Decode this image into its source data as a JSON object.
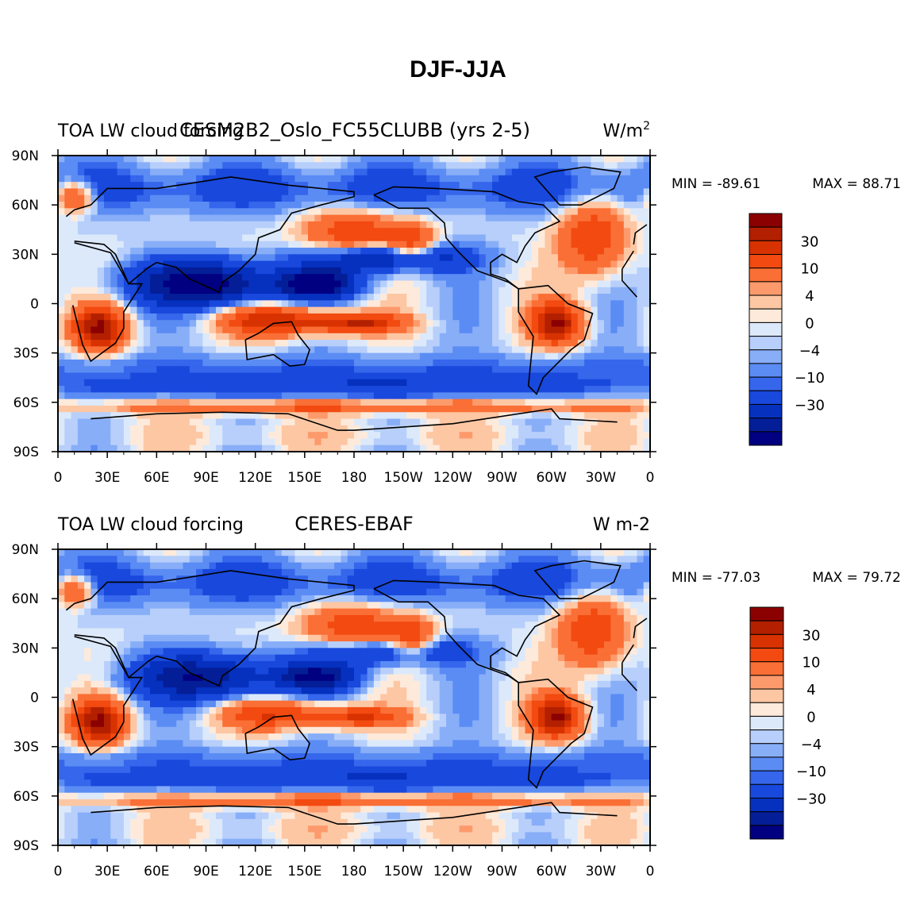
{
  "figure_title": "DJF-JJA",
  "chart_data": [
    {
      "type": "heatmap",
      "subtype": "filled-contour-map",
      "left_title": "TOA LW cloud forcing",
      "center_title": "CESM2B2_Oslo_FC55CLUBB (yrs 2-5)",
      "units_base": "W/m",
      "units_sup": "2",
      "min_label": "MIN = -89.61",
      "max_label": "MAX =  88.71",
      "min": -89.61,
      "max": 88.71,
      "x_ticks": [
        "0",
        "30E",
        "60E",
        "90E",
        "120E",
        "150E",
        "180",
        "150W",
        "120W",
        "90W",
        "60W",
        "30W",
        "0"
      ],
      "y_ticks": [
        "90N",
        "60N",
        "30N",
        "0",
        "30S",
        "60S",
        "90S"
      ],
      "colorbar_levels": [
        -50,
        -40,
        -30,
        -20,
        -10,
        -8,
        -4,
        -2,
        0,
        2,
        4,
        8,
        10,
        20,
        30,
        40,
        50
      ],
      "colorbar_labels": [
        "30",
        "10",
        "4",
        "0",
        "−4",
        "−10",
        "−30"
      ],
      "colorbar_colors": [
        "#8b0000",
        "#b22000",
        "#d83200",
        "#f24a10",
        "#fa6f35",
        "#fd9a6c",
        "#fdc7a4",
        "#feeadb",
        "#dce9fb",
        "#b7cffa",
        "#88aef8",
        "#5b8cf4",
        "#3566eb",
        "#1848dc",
        "#0630be",
        "#041e98",
        "#000080"
      ],
      "regions": [
        {
          "name": "tropical-indian-ocean-negative",
          "value": -50
        },
        {
          "name": "central-pacific-north-negative",
          "value": -40
        },
        {
          "name": "southern-africa-positive",
          "value": 50
        },
        {
          "name": "amazon-positive",
          "value": 50
        },
        {
          "name": "maritime-continent-positive",
          "value": 40
        },
        {
          "name": "north-pacific-positive",
          "value": 30
        },
        {
          "name": "north-atlantic-positive",
          "value": 30
        },
        {
          "name": "southern-ocean-60s-positive",
          "value": 20
        },
        {
          "name": "southern-ocean-negative",
          "value": -20
        },
        {
          "name": "antarctica-weak-positive",
          "value": 4
        }
      ]
    },
    {
      "type": "heatmap",
      "subtype": "filled-contour-map",
      "left_title": "TOA LW cloud forcing",
      "center_title": "CERES-EBAF",
      "units_base": "W m-2",
      "units_sup": "",
      "min_label": "MIN = -77.03",
      "max_label": "MAX =  79.72",
      "min": -77.03,
      "max": 79.72,
      "x_ticks": [
        "0",
        "30E",
        "60E",
        "90E",
        "120E",
        "150E",
        "180",
        "150W",
        "120W",
        "90W",
        "60W",
        "30W",
        "0"
      ],
      "y_ticks": [
        "90N",
        "60N",
        "30N",
        "0",
        "30S",
        "60S",
        "90S"
      ],
      "colorbar_levels": [
        -50,
        -40,
        -30,
        -20,
        -10,
        -8,
        -4,
        -2,
        0,
        2,
        4,
        8,
        10,
        20,
        30,
        40,
        50
      ],
      "colorbar_labels": [
        "30",
        "10",
        "4",
        "0",
        "−4",
        "−10",
        "−30"
      ],
      "colorbar_colors": [
        "#8b0000",
        "#b22000",
        "#d83200",
        "#f24a10",
        "#fa6f35",
        "#fd9a6c",
        "#fdc7a4",
        "#feeadb",
        "#dce9fb",
        "#b7cffa",
        "#88aef8",
        "#5b8cf4",
        "#3566eb",
        "#1848dc",
        "#0630be",
        "#041e98",
        "#000080"
      ],
      "regions": [
        {
          "name": "tropical-indian-ocean-negative",
          "value": -40
        },
        {
          "name": "central-pacific-north-negative",
          "value": -30
        },
        {
          "name": "southern-africa-positive",
          "value": 50
        },
        {
          "name": "amazon-positive",
          "value": 50
        },
        {
          "name": "maritime-continent-positive",
          "value": 30
        },
        {
          "name": "north-pacific-positive",
          "value": 30
        },
        {
          "name": "north-atlantic-positive",
          "value": 30
        },
        {
          "name": "southern-ocean-60s-positive",
          "value": 20
        },
        {
          "name": "southern-ocean-negative",
          "value": -20
        },
        {
          "name": "antarctica-weak-positive",
          "value": 4
        }
      ]
    }
  ]
}
